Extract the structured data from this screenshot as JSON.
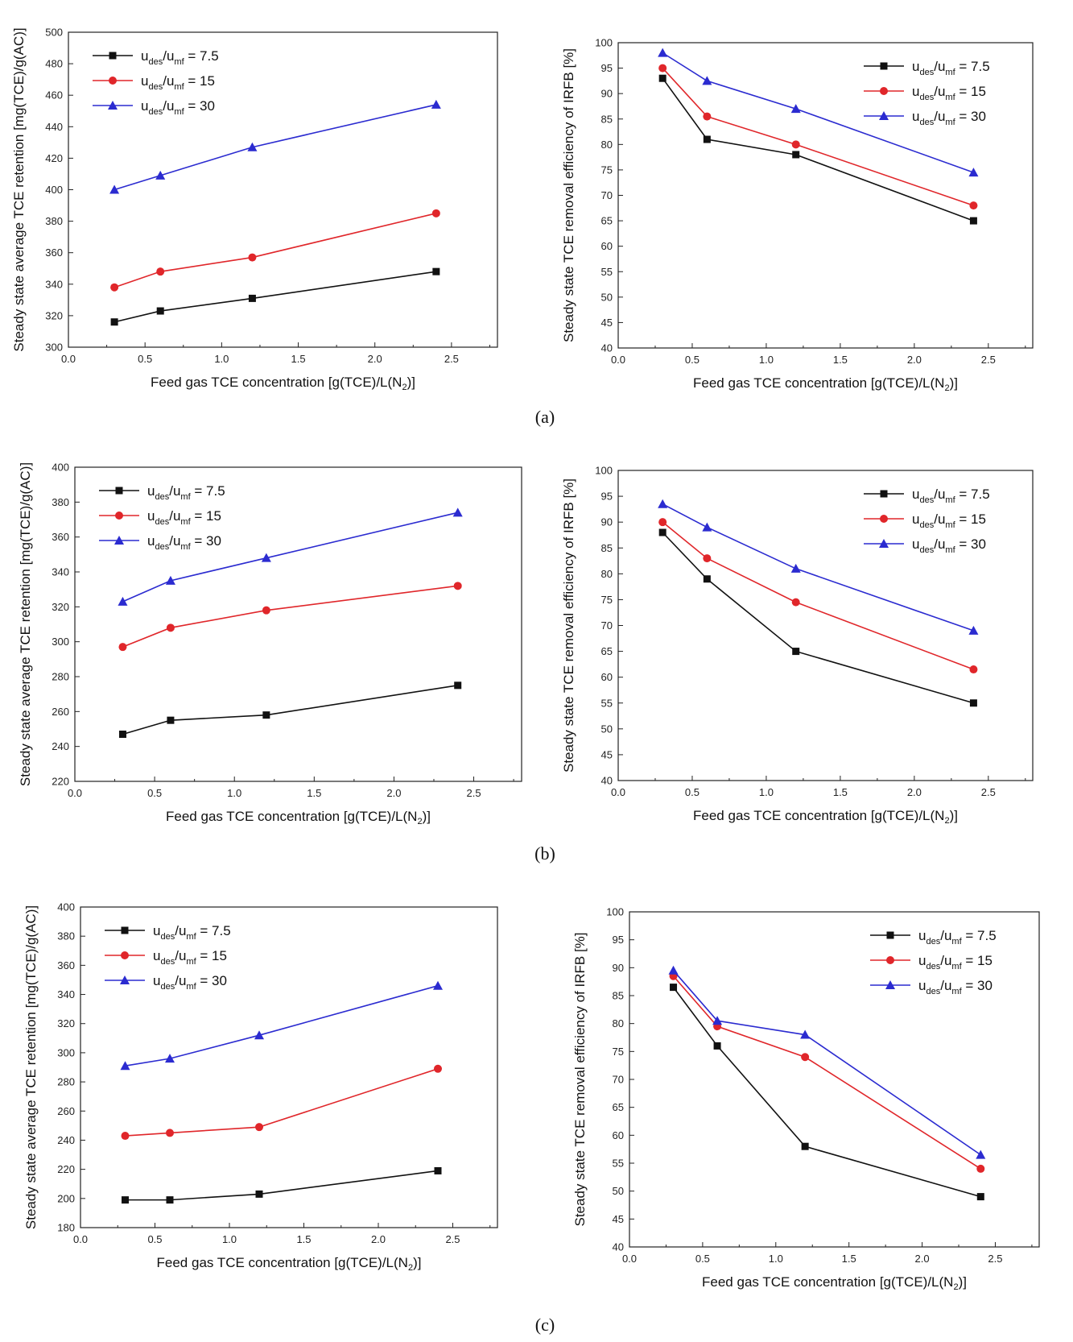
{
  "panel_labels": [
    "(a)",
    "(b)",
    "(c)"
  ],
  "colors": {
    "s7_5": "#111111",
    "s15": "#e0262a",
    "s30": "#2b2bd0"
  },
  "legend": [
    {
      "base": "u",
      "sub1": "des",
      "mid": "/u",
      "sub2": "mf",
      "tail": " = 7.5",
      "marker": "square",
      "color": "#111111"
    },
    {
      "base": "u",
      "sub1": "des",
      "mid": "/u",
      "sub2": "mf",
      "tail": " = 15",
      "marker": "circle",
      "color": "#e0262a"
    },
    {
      "base": "u",
      "sub1": "des",
      "mid": "/u",
      "sub2": "mf",
      "tail": " = 30",
      "marker": "triangle",
      "color": "#2b2bd0"
    }
  ],
  "chart_data": [
    {
      "type": "line",
      "panel": "(a)",
      "xlabel": "Feed gas TCE concentration [g(TCE)/L(N2)]",
      "ylabel": "Steady state average TCE retention [mg(TCE)/g(AC)]",
      "xlim": [
        0.0,
        2.8
      ],
      "ylim": [
        300,
        500
      ],
      "xticks": [
        "0.0",
        "0.5",
        "1.0",
        "1.5",
        "2.0",
        "2.5"
      ],
      "yticks": [
        "300",
        "320",
        "340",
        "360",
        "380",
        "400",
        "420",
        "440",
        "460",
        "480",
        "500"
      ],
      "legend_position": "top-left",
      "x": [
        0.3,
        0.6,
        1.2,
        2.4
      ],
      "series": [
        {
          "name": "udes/umf = 7.5",
          "values": [
            316,
            323,
            331,
            348
          ]
        },
        {
          "name": "udes/umf = 15",
          "values": [
            338,
            348,
            357,
            385
          ]
        },
        {
          "name": "udes/umf = 30",
          "values": [
            400,
            409,
            427,
            454
          ]
        }
      ]
    },
    {
      "type": "line",
      "panel": "(a)",
      "xlabel": "Feed gas TCE concentration [g(TCE)/L(N2)]",
      "ylabel": "Steady state TCE removal efficiency of IRFB [%]",
      "xlim": [
        0.0,
        2.8
      ],
      "ylim": [
        40,
        100
      ],
      "xticks": [
        "0.0",
        "0.5",
        "1.0",
        "1.5",
        "2.0",
        "2.5"
      ],
      "yticks": [
        "40",
        "45",
        "50",
        "55",
        "60",
        "65",
        "70",
        "75",
        "80",
        "85",
        "90",
        "95",
        "100"
      ],
      "legend_position": "top-right",
      "x": [
        0.3,
        0.6,
        1.2,
        2.4
      ],
      "series": [
        {
          "name": "udes/umf = 7.5",
          "values": [
            93,
            81,
            78,
            65
          ]
        },
        {
          "name": "udes/umf = 15",
          "values": [
            95,
            85.5,
            80,
            68
          ]
        },
        {
          "name": "udes/umf = 30",
          "values": [
            98,
            92.5,
            87,
            74.5
          ]
        }
      ]
    },
    {
      "type": "line",
      "panel": "(b)",
      "xlabel": "Feed gas TCE concentration [g(TCE)/L(N2)]",
      "ylabel": "Steady state average TCE retention [mg(TCE)/g(AC)]",
      "xlim": [
        0.0,
        2.8
      ],
      "ylim": [
        220,
        400
      ],
      "xticks": [
        "0.0",
        "0.5",
        "1.0",
        "1.5",
        "2.0",
        "2.5"
      ],
      "yticks": [
        "220",
        "240",
        "260",
        "280",
        "300",
        "320",
        "340",
        "360",
        "380",
        "400"
      ],
      "legend_position": "top-left",
      "x": [
        0.3,
        0.6,
        1.2,
        2.4
      ],
      "series": [
        {
          "name": "udes/umf = 7.5",
          "values": [
            247,
            255,
            258,
            275
          ]
        },
        {
          "name": "udes/umf = 15",
          "values": [
            297,
            308,
            318,
            332
          ]
        },
        {
          "name": "udes/umf = 30",
          "values": [
            323,
            335,
            348,
            374
          ]
        }
      ]
    },
    {
      "type": "line",
      "panel": "(b)",
      "xlabel": "Feed gas TCE concentration [g(TCE)/L(N2)]",
      "ylabel": "Steady state TCE removal efficiency of IRFB [%]",
      "xlim": [
        0.0,
        2.8
      ],
      "ylim": [
        40,
        100
      ],
      "xticks": [
        "0.0",
        "0.5",
        "1.0",
        "1.5",
        "2.0",
        "2.5"
      ],
      "yticks": [
        "40",
        "45",
        "50",
        "55",
        "60",
        "65",
        "70",
        "75",
        "80",
        "85",
        "90",
        "95",
        "100"
      ],
      "legend_position": "top-right",
      "x": [
        0.3,
        0.6,
        1.2,
        2.4
      ],
      "series": [
        {
          "name": "udes/umf = 7.5",
          "values": [
            88,
            79,
            65,
            55
          ]
        },
        {
          "name": "udes/umf = 15",
          "values": [
            90,
            83,
            74.5,
            61.5
          ]
        },
        {
          "name": "udes/umf = 30",
          "values": [
            93.5,
            89,
            81,
            69
          ]
        }
      ]
    },
    {
      "type": "line",
      "panel": "(c)",
      "xlabel": "Feed gas TCE concentration [g(TCE)/L(N2)]",
      "ylabel": "Steady state average TCE retention [mg(TCE)/g(AC)]",
      "xlim": [
        0.0,
        2.8
      ],
      "ylim": [
        180,
        400
      ],
      "xticks": [
        "0.0",
        "0.5",
        "1.0",
        "1.5",
        "2.0",
        "2.5"
      ],
      "yticks": [
        "180",
        "200",
        "220",
        "240",
        "260",
        "280",
        "300",
        "320",
        "340",
        "360",
        "380",
        "400"
      ],
      "legend_position": "top-left",
      "x": [
        0.3,
        0.6,
        1.2,
        2.4
      ],
      "series": [
        {
          "name": "udes/umf = 7.5",
          "values": [
            199,
            199,
            203,
            219
          ]
        },
        {
          "name": "udes/umf = 15",
          "values": [
            243,
            245,
            249,
            289
          ]
        },
        {
          "name": "udes/umf = 30",
          "values": [
            291,
            296,
            312,
            346
          ]
        }
      ]
    },
    {
      "type": "line",
      "panel": "(c)",
      "xlabel": "Feed gas TCE concentration [g(TCE)/L(N2)]",
      "ylabel": "Steady state TCE removal efficiency of IRFB [%]",
      "xlim": [
        0.0,
        2.8
      ],
      "ylim": [
        40,
        100
      ],
      "xticks": [
        "0.0",
        "0.5",
        "1.0",
        "1.5",
        "2.0",
        "2.5"
      ],
      "yticks": [
        "40",
        "45",
        "50",
        "55",
        "60",
        "65",
        "70",
        "75",
        "80",
        "85",
        "90",
        "95",
        "100"
      ],
      "legend_position": "top-right",
      "x": [
        0.3,
        0.6,
        1.2,
        2.4
      ],
      "series": [
        {
          "name": "udes/umf = 7.5",
          "values": [
            86.5,
            76,
            58,
            49
          ]
        },
        {
          "name": "udes/umf = 15",
          "values": [
            88.5,
            79.5,
            74,
            54
          ]
        },
        {
          "name": "udes/umf = 30",
          "values": [
            89.5,
            80.5,
            78,
            56.5
          ]
        }
      ]
    }
  ]
}
